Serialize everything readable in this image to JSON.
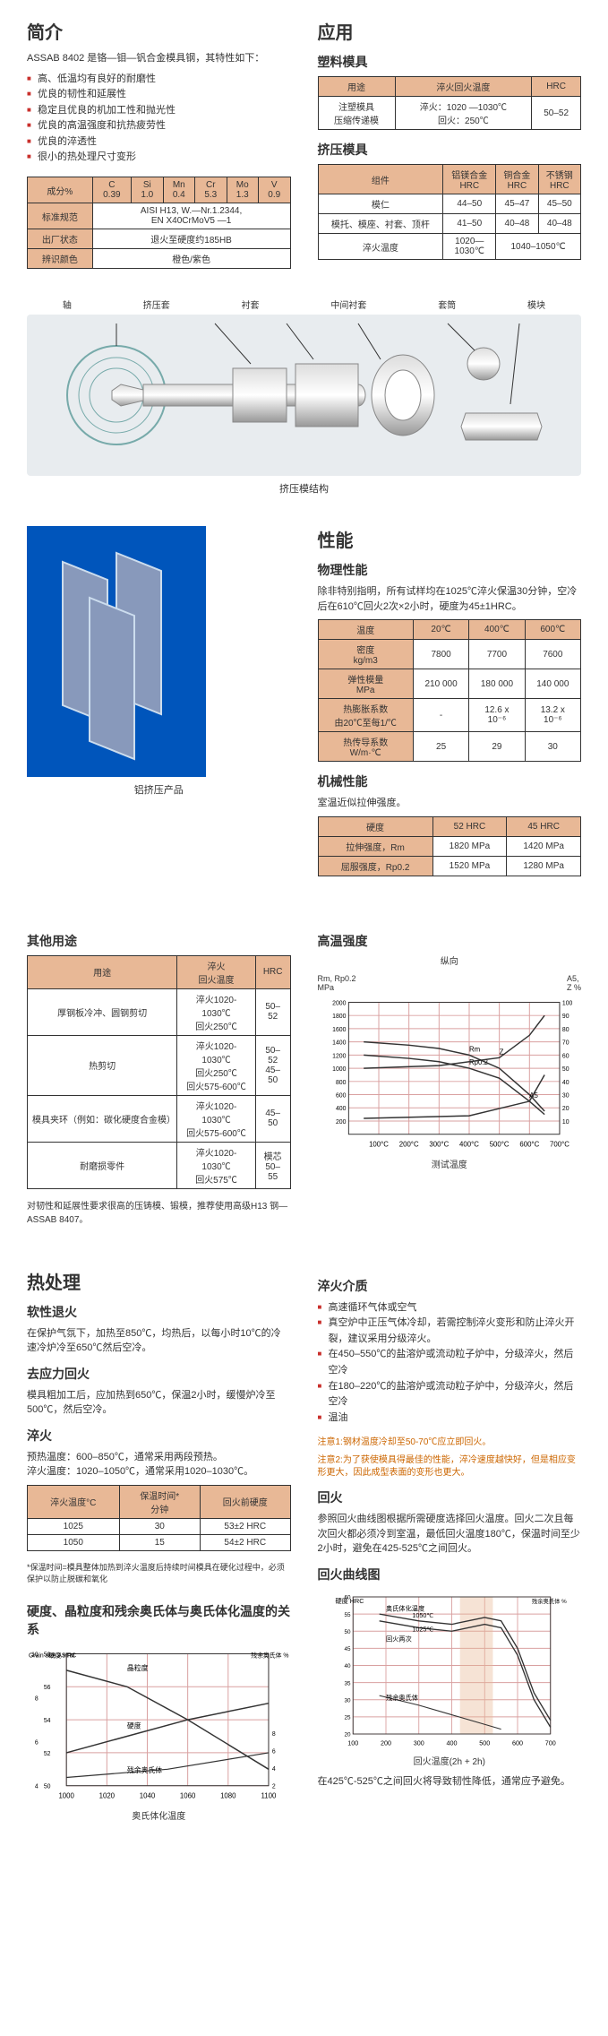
{
  "intro": {
    "title": "简介",
    "desc": "ASSAB 8402 是铬—钼—钒合金模具钢，其特性如下：",
    "features": [
      "高、低温均有良好的耐磨性",
      "优良的韧性和延展性",
      "稳定且优良的机加工性和抛光性",
      "优良的高温强度和抗热疲劳性",
      "优良的淬透性",
      "很小的热处理尺寸变形"
    ]
  },
  "composition": {
    "headers": [
      "成分%",
      "C\n0.39",
      "Si\n1.0",
      "Mn\n0.4",
      "Cr\n5.3",
      "Mo\n1.3",
      "V\n0.9"
    ],
    "rows": [
      [
        "标准规范",
        "AISI H13, W.—Nr.1.2344,\nEN X40CrMoV5 —1"
      ],
      [
        "出厂状态",
        "退火至硬度约185HB"
      ],
      [
        "辨识颜色",
        "橙色/紫色"
      ]
    ]
  },
  "application": {
    "title": "应用",
    "plastic": {
      "title": "塑料模具",
      "headers": [
        "用途",
        "淬火回火温度",
        "HRC"
      ],
      "rows": [
        [
          "注塑模具\n压缩传递模",
          "淬火：1020 —1030℃\n回火：250℃",
          "50–52"
        ]
      ]
    },
    "extrusion": {
      "title": "挤压模具",
      "headers": [
        "组件",
        "铝镁合金\nHRC",
        "铜合金\nHRC",
        "不锈钢\nHRC"
      ],
      "rows": [
        [
          "模仁",
          "44–50",
          "45–47",
          "45–50"
        ],
        [
          "模托、模座、衬套、顶杆",
          "41–50",
          "40–48",
          "40–48"
        ],
        [
          "淬火温度",
          "1020—\n1030℃",
          "1040–1050℃",
          ""
        ]
      ]
    }
  },
  "diagram": {
    "labels": [
      "轴",
      "挤压套",
      "衬套",
      "中间衬套",
      "套筒",
      "模块"
    ],
    "caption": "挤压模结构"
  },
  "product_caption": "铝挤压产品",
  "performance": {
    "title": "性能",
    "physical": {
      "title": "物理性能",
      "desc": "除非特别指明，所有试样均在1025℃淬火保温30分钟，空冷后在610℃回火2次×2小时，硬度为45±1HRC。",
      "headers": [
        "温度",
        "20℃",
        "400℃",
        "600℃"
      ],
      "rows": [
        [
          "密度\nkg/m3",
          "7800",
          "7700",
          "7600"
        ],
        [
          "弹性模量\nMPa",
          "210 000",
          "180 000",
          "140 000"
        ],
        [
          "热膨胀系数\n由20℃至每1/℃",
          "-",
          "12.6 x\n10⁻⁶",
          "13.2 x\n10⁻⁶"
        ],
        [
          "热传导系数\nW/m·℃",
          "25",
          "29",
          "30"
        ]
      ]
    },
    "mechanical": {
      "title": "机械性能",
      "desc": "室温近似拉伸强度。",
      "headers": [
        "硬度",
        "52 HRC",
        "45 HRC"
      ],
      "rows": [
        [
          "拉伸强度，Rm",
          "1820 MPa",
          "1420 MPa"
        ],
        [
          "屈服强度，Rp0.2",
          "1520 MPa",
          "1280 MPa"
        ]
      ]
    }
  },
  "other_uses": {
    "title": "其他用途",
    "headers": [
      "用途",
      "淬火\n回火温度",
      "HRC"
    ],
    "rows": [
      [
        "厚钢板冷冲、圆钢剪切",
        "淬火1020-1030℃\n回火250℃",
        "50–52"
      ],
      [
        "热剪切",
        "淬火1020-1030℃\n回火250℃\n回火575-600℃",
        "50–52\n45–50"
      ],
      [
        "模具夹环（例如：碳化硬度合金模）",
        "淬火1020-1030℃\n回火575-600℃",
        "45–50"
      ],
      [
        "耐磨损零件",
        "淬火1020-1030℃\n回火575℃",
        "模芯\n50–55"
      ]
    ],
    "note": "对韧性和延展性要求很高的压铸模、锻模，推荐使用高级H13 钢—ASSAB 8407。"
  },
  "high_temp": {
    "title": "高温强度",
    "unit": "纵向",
    "ylabel": "Rm, Rp0.2\nMPa",
    "ylabel2": "A5,\nZ %",
    "chart": {
      "xlim": [
        0,
        700
      ],
      "ylim": [
        0,
        2000
      ],
      "ylim2": [
        0,
        100
      ],
      "xticks": [
        100,
        200,
        300,
        400,
        500,
        600,
        700
      ],
      "yticks": [
        200,
        400,
        600,
        800,
        1000,
        1200,
        1400,
        1600,
        1800,
        2000
      ],
      "yticks2": [
        10,
        20,
        30,
        40,
        50,
        60,
        70,
        80,
        90,
        100
      ],
      "grid_color": "#d9a0a0",
      "lines": {
        "Rm": {
          "color": "#333",
          "data": [
            [
              50,
              1400
            ],
            [
              200,
              1350
            ],
            [
              300,
              1300
            ],
            [
              400,
              1200
            ],
            [
              500,
              1000
            ],
            [
              600,
              600
            ],
            [
              650,
              350
            ]
          ]
        },
        "Rp0.2": {
          "color": "#333",
          "data": [
            [
              50,
              1200
            ],
            [
              200,
              1150
            ],
            [
              300,
              1100
            ],
            [
              400,
              1000
            ],
            [
              500,
              850
            ],
            [
              600,
              500
            ],
            [
              650,
              300
            ]
          ]
        },
        "Z": {
          "color": "#333",
          "data": [
            [
              50,
              50
            ],
            [
              300,
              52
            ],
            [
              500,
              58
            ],
            [
              600,
              75
            ],
            [
              650,
              90
            ]
          ]
        },
        "A5": {
          "color": "#333",
          "data": [
            [
              50,
              12
            ],
            [
              400,
              14
            ],
            [
              600,
              25
            ],
            [
              650,
              45
            ]
          ]
        }
      },
      "xlabel": "测试温度"
    }
  },
  "heat_treatment": {
    "title": "热处理",
    "sections": [
      {
        "title": "软性退火",
        "text": "在保护气氛下，加热至850℃，均热后，以每小时10℃的冷速冷炉冷至650℃然后空冷。"
      },
      {
        "title": "去应力回火",
        "text": "模具粗加工后，应加热到650℃，保温2小时，缓慢炉冷至500℃，然后空冷。"
      },
      {
        "title": "淬火",
        "text": "预热温度：600–850℃，通常采用两段预热。\n淬火温度：1020–1050℃，通常采用1020–1030℃。"
      }
    ],
    "quench_table": {
      "headers": [
        "淬火温度°C",
        "保温时间*\n分钟",
        "回火前硬度"
      ],
      "rows": [
        [
          "1025",
          "30",
          "53±2 HRC"
        ],
        [
          "1050",
          "15",
          "54±2 HRC"
        ]
      ],
      "footnote": "*保温时间=模具整体加热到淬火温度后持续时间模具在硬化过程中，必须保护以防止脱碳和氧化"
    }
  },
  "quench_medium": {
    "title": "淬火介质",
    "items": [
      "高速循环气体或空气",
      "真空炉中正压气体冷却，若需控制淬火变形和防止淬火开裂，建议采用分级淬火。",
      "在450–550℃的盐溶炉或流动粒子炉中，分级淬火，然后空冷",
      "在180–220℃的盐溶炉或流动粒子炉中，分级淬火，然后空冷",
      "温油"
    ],
    "note": "注意1:钢材温度冷却至50-70℃应立即回火。",
    "note2": "注意2:为了获使模具得最佳的性能，淬冷速度越快好，但是相应变形更大，因此成型表面的变形也更大。"
  },
  "tempering": {
    "title": "回火",
    "text": "参照回火曲线图根据所需硬度选择回火温度。回火二次且每次回火都必须冷到室温，最低回火温度180℃，保温时间至少2小时，避免在425-525℃之间回火。",
    "chart_title": "回火曲线图",
    "chart": {
      "ylabel": "硬度\nHRC",
      "ylabel2": "残余奥氏体 %",
      "xlim": [
        100,
        700
      ],
      "ylim": [
        20,
        60
      ],
      "xticks": [
        100,
        200,
        300,
        400,
        500,
        600,
        700
      ],
      "yticks": [
        20,
        25,
        30,
        35,
        40,
        45,
        50,
        55,
        60
      ],
      "grid_color": "#d9a0a0",
      "annotations": [
        "奥氏体化温度",
        "1050℃",
        "1025℃",
        "回火两次",
        "残余奥氏体"
      ],
      "xlabel": "回火温度(2h + 2h)"
    },
    "footer": "在425℃-525℃之间回火将导致韧性降低，通常应予避免。"
  },
  "hardness_chart": {
    "title": "硬度、晶粒度和残余奥氏体与奥氏体化温度的关系",
    "ylabel": "Grain\nsize\nASTM",
    "ylabel_mid": "硬度\nHRC",
    "ylabel2": "残余奥氏体\n%",
    "labels": [
      "晶粒度",
      "硬度",
      "残余奥氏体"
    ],
    "xlim": [
      1000,
      1100
    ],
    "xticks": [
      1000,
      1020,
      1040,
      1060,
      1080,
      1100
    ],
    "yticks_left": [
      4,
      6,
      8,
      10
    ],
    "yticks_mid": [
      50,
      52,
      54,
      56,
      58
    ],
    "yticks_right": [
      2,
      4,
      6,
      8
    ],
    "grid_color": "#d9a0a0",
    "xlabel": "奥氏体化温度"
  }
}
